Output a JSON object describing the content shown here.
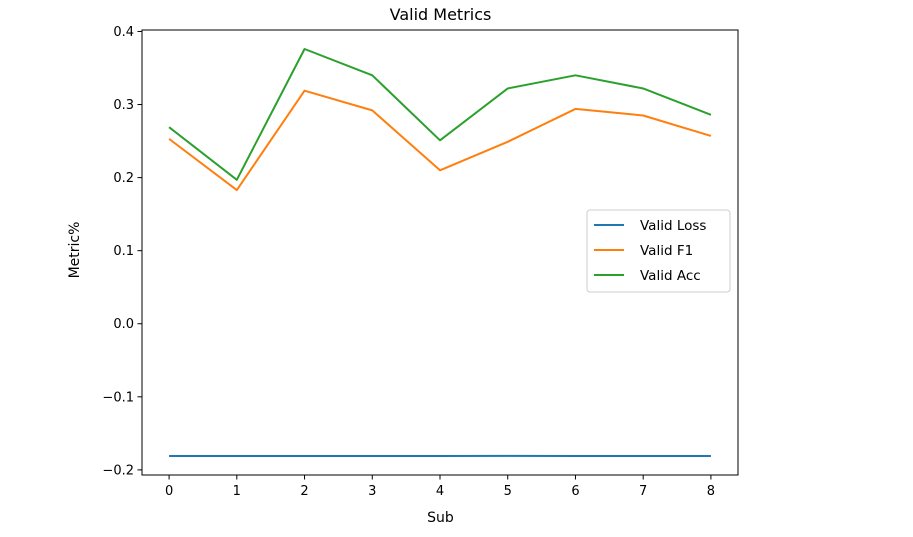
{
  "chart_data": {
    "type": "line",
    "title": "Valid Metrics",
    "xlabel": "Sub",
    "ylabel": "Metric%",
    "x": [
      0,
      1,
      2,
      3,
      4,
      5,
      6,
      7,
      8
    ],
    "xlim": [
      -0.4,
      8.4
    ],
    "ylim": [
      -0.207,
      0.402
    ],
    "xticks": [
      0,
      1,
      2,
      3,
      4,
      5,
      6,
      7,
      8
    ],
    "yticks": [
      -0.2,
      -0.1,
      0.0,
      0.1,
      0.2,
      0.3,
      0.4
    ],
    "ytick_labels": [
      "−0.2",
      "−0.1",
      "0.0",
      "0.1",
      "0.2",
      "0.3",
      "0.4"
    ],
    "grid": false,
    "legend_position": "center-right",
    "series": [
      {
        "name": "Valid Loss",
        "color": "#1f77b4",
        "values": [
          -0.181,
          -0.181,
          -0.181,
          -0.181,
          -0.181,
          -0.1808,
          -0.181,
          -0.181,
          -0.181
        ]
      },
      {
        "name": "Valid F1",
        "color": "#ff7f0e",
        "values": [
          0.253,
          0.183,
          0.319,
          0.292,
          0.21,
          0.249,
          0.294,
          0.285,
          0.257
        ]
      },
      {
        "name": "Valid Acc",
        "color": "#2ca02c",
        "values": [
          0.269,
          0.197,
          0.376,
          0.34,
          0.251,
          0.322,
          0.34,
          0.322,
          0.286
        ]
      }
    ]
  }
}
